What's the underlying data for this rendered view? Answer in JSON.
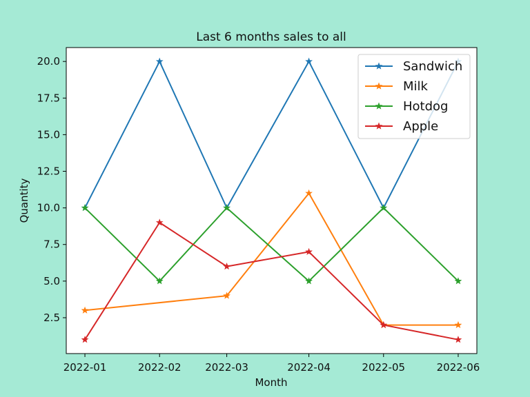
{
  "chart_data": {
    "type": "line",
    "title": "Last 6 months sales to all",
    "xlabel": "Month",
    "ylabel": "Quantity",
    "categories": [
      "2022-01",
      "2022-02",
      "2022-03",
      "2022-04",
      "2022-05",
      "2022-06"
    ],
    "x_index": [
      0,
      1,
      1.9,
      3,
      4,
      5
    ],
    "ylim": [
      0.05,
      20.95
    ],
    "yticks": [
      2.5,
      5.0,
      7.5,
      10.0,
      12.5,
      15.0,
      17.5,
      20.0
    ],
    "ytick_labels": [
      "2.5",
      "5.0",
      "7.5",
      "10.0",
      "12.5",
      "15.0",
      "17.5",
      "20.0"
    ],
    "legend_position": "top-right",
    "marker": "star",
    "grid": false,
    "series": [
      {
        "name": "Sandwich",
        "color": "#1f77b4",
        "values": [
          10,
          20,
          10,
          20,
          10,
          20
        ]
      },
      {
        "name": "Milk",
        "color": "#ff7f0e",
        "values": [
          3,
          null,
          4,
          11,
          2,
          2
        ]
      },
      {
        "name": "Hotdog",
        "color": "#2ca02c",
        "values": [
          10,
          5,
          10,
          5,
          10,
          5
        ]
      },
      {
        "name": "Apple",
        "color": "#d62728",
        "values": [
          1,
          9,
          6,
          7,
          2,
          1
        ]
      }
    ]
  },
  "colors": {
    "background": "#a5ead5",
    "plot_area": "#ffffff"
  }
}
